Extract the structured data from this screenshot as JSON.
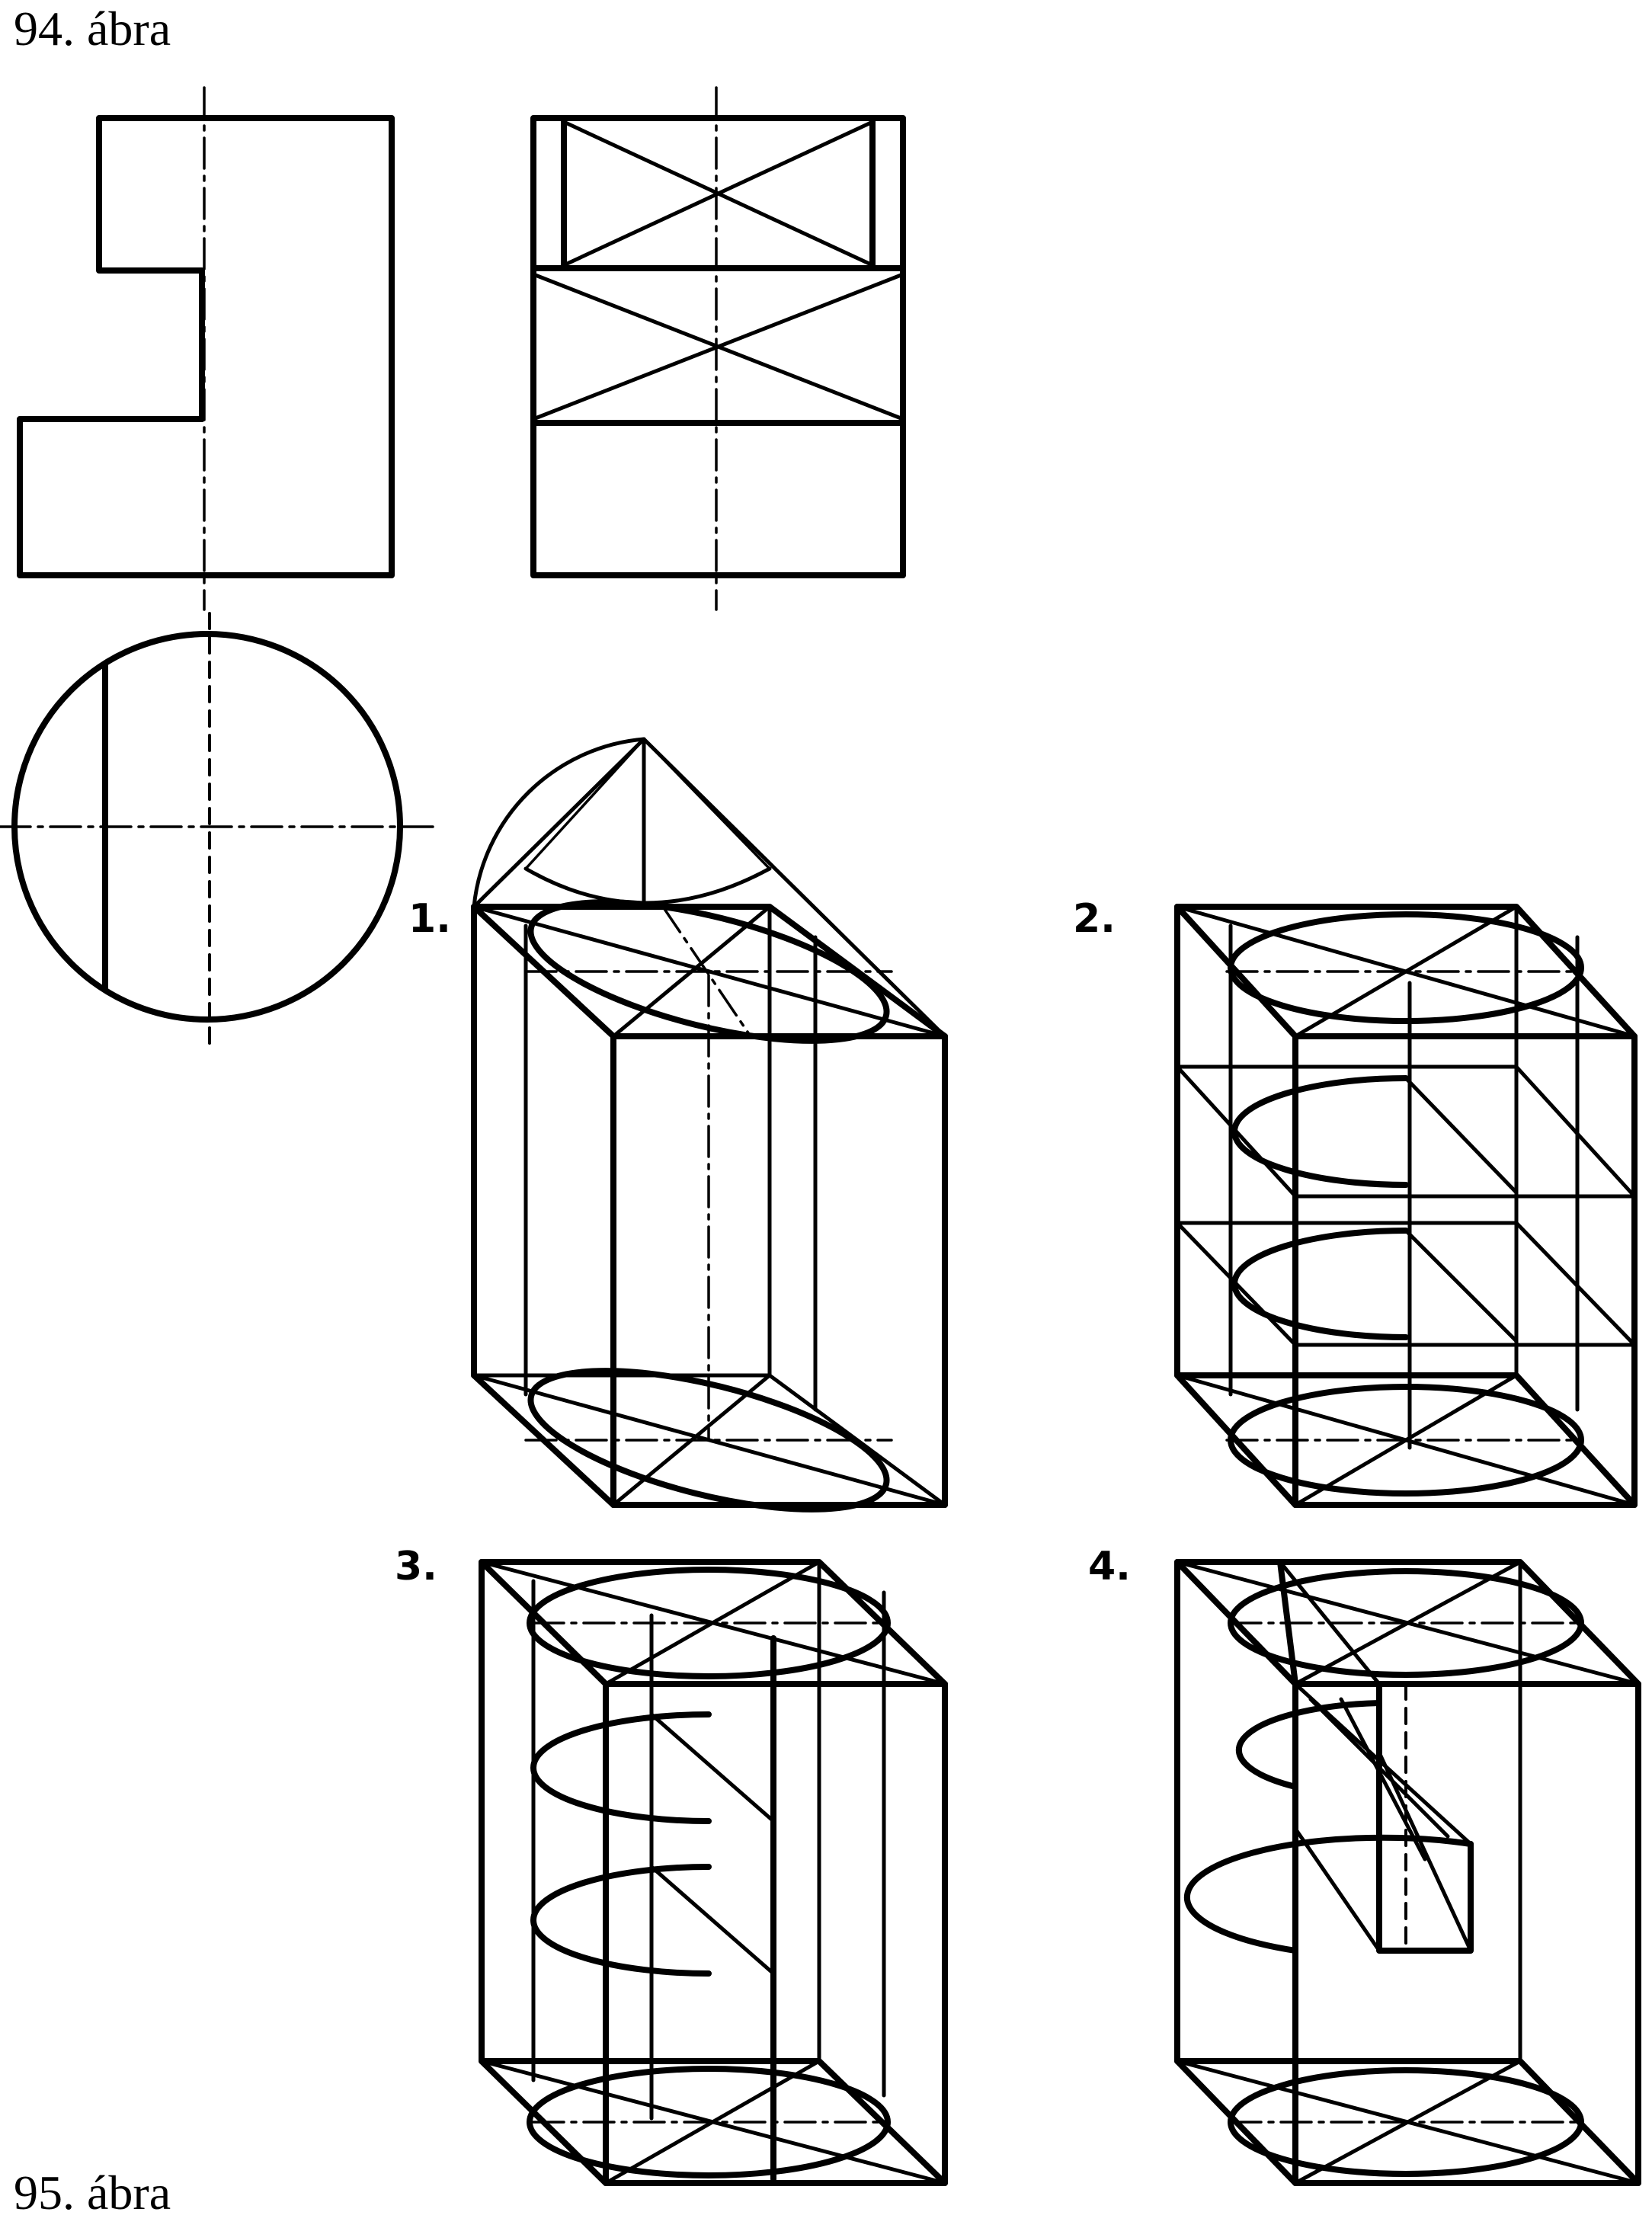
{
  "figure_caption_top": "94. ábra",
  "figure_caption_bottom": "95. ábra",
  "step_labels": [
    "1.",
    "2.",
    "3.",
    "4."
  ]
}
